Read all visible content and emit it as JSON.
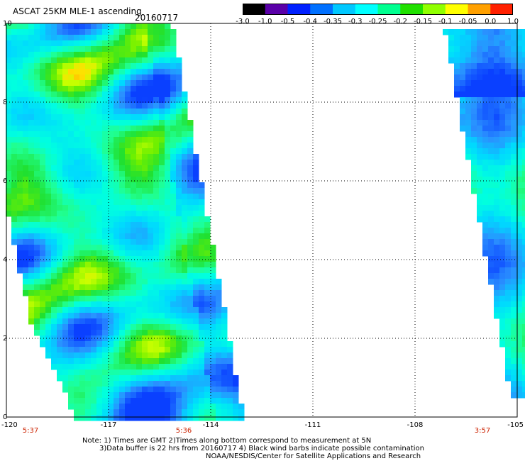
{
  "header": {
    "title": "ASCAT 25KM MLE-1 ascending",
    "date": "20160717"
  },
  "colorbar": {
    "labels": [
      "-3.0",
      "-1.0",
      "-0.5",
      "-0.4",
      "-0.35",
      "-0.3",
      "-0.25",
      "-0.2",
      "-0.15",
      "-0.1",
      "-0.05",
      "0.0",
      "1.0"
    ],
    "colors": [
      "#000000",
      "#5a00a8",
      "#0020ff",
      "#0070ff",
      "#00c8ff",
      "#00ffff",
      "#00ff90",
      "#20e000",
      "#90ff00",
      "#ffff00",
      "#ffa000",
      "#ff2000"
    ]
  },
  "map": {
    "lat_labels": [
      "10",
      "8",
      "6",
      "4",
      "2",
      "0"
    ],
    "lon_labels": [
      "-120",
      "-117",
      "-114",
      "-111",
      "-108",
      "-105"
    ],
    "time_labels": [
      "5:37",
      "5:36",
      "3:57"
    ]
  },
  "notes": {
    "line1": "Note: 1) Times are GMT 2)Times along bottom correspond to measurement at 5N",
    "line2": "3)Data buffer is 22 hrs from 20160717 4) Black wind barbs indicate possible contamination",
    "line3": "NOAA/NESDIS/Center for Satellite Applications and Research"
  }
}
